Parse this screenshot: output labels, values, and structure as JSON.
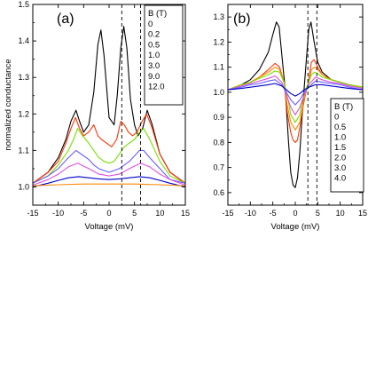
{
  "chart_data": [
    {
      "type": "line",
      "panel_label": "(a)",
      "xlabel": "Voltage (mV)",
      "ylabel": "normalized conductance",
      "xlim": [
        -15,
        15
      ],
      "ylim": [
        0.95,
        1.5
      ],
      "xticks": [
        -15,
        -10,
        -5,
        0,
        5,
        10,
        15
      ],
      "yticks": [
        1.0,
        1.1,
        1.2,
        1.3,
        1.4,
        1.5
      ],
      "ytick_labels": [
        "1.0",
        "1.1",
        "1.2",
        "1.3",
        "1.4",
        "1.5"
      ],
      "vlines": [
        2.5,
        6.2
      ],
      "legend": {
        "title": "B (T)",
        "position": "top-right"
      },
      "series": [
        {
          "name": "0",
          "color": "#000000",
          "x": [
            -15,
            -12,
            -10,
            -8.5,
            -7.5,
            -6.5,
            -5.8,
            -5,
            -4,
            -3,
            -2.2,
            -1.6,
            -1,
            0,
            1,
            1.6,
            2.3,
            2.9,
            3.5,
            4.2,
            5,
            5.7,
            6.6,
            7.5,
            8.5,
            10,
            12,
            15
          ],
          "y": [
            1.01,
            1.04,
            1.08,
            1.13,
            1.18,
            1.21,
            1.18,
            1.15,
            1.17,
            1.26,
            1.39,
            1.43,
            1.36,
            1.19,
            1.17,
            1.25,
            1.38,
            1.44,
            1.38,
            1.24,
            1.17,
            1.14,
            1.16,
            1.21,
            1.17,
            1.09,
            1.04,
            1.01
          ]
        },
        {
          "name": "0.2",
          "color": "#ff3300",
          "x": [
            -15,
            -12,
            -10,
            -8.5,
            -7.5,
            -6.6,
            -5.8,
            -5,
            -4,
            -3,
            -2.2,
            -1.5,
            -0.5,
            0.5,
            1.5,
            2.3,
            3,
            3.8,
            4.6,
            5.5,
            6.5,
            7.4,
            8.5,
            10,
            12,
            15
          ],
          "y": [
            1.01,
            1.04,
            1.07,
            1.12,
            1.16,
            1.19,
            1.16,
            1.14,
            1.15,
            1.17,
            1.14,
            1.13,
            1.12,
            1.11,
            1.13,
            1.18,
            1.17,
            1.15,
            1.14,
            1.15,
            1.18,
            1.2,
            1.16,
            1.09,
            1.04,
            1.01
          ]
        },
        {
          "name": "0.5",
          "color": "#77e000",
          "x": [
            -15,
            -12,
            -10,
            -8,
            -7,
            -6.2,
            -5.2,
            -4,
            -3,
            -2,
            -1,
            0,
            1,
            2,
            3,
            4,
            5,
            6,
            6.8,
            8,
            10,
            12,
            15
          ],
          "y": [
            1.01,
            1.03,
            1.06,
            1.1,
            1.13,
            1.16,
            1.14,
            1.12,
            1.1,
            1.08,
            1.07,
            1.065,
            1.07,
            1.09,
            1.11,
            1.12,
            1.13,
            1.15,
            1.16,
            1.13,
            1.07,
            1.03,
            1.01
          ]
        },
        {
          "name": "1.0",
          "color": "#6a5cff",
          "x": [
            -15,
            -12,
            -10,
            -8,
            -6.5,
            -5.5,
            -4,
            -3,
            -2,
            -1,
            0,
            1,
            2,
            3,
            4,
            5,
            6,
            6.8,
            8,
            10,
            12,
            15
          ],
          "y": [
            1.01,
            1.03,
            1.05,
            1.08,
            1.1,
            1.09,
            1.075,
            1.06,
            1.05,
            1.045,
            1.04,
            1.045,
            1.05,
            1.06,
            1.07,
            1.085,
            1.1,
            1.1,
            1.08,
            1.05,
            1.02,
            1.01
          ]
        },
        {
          "name": "3.0",
          "color": "#e050e0",
          "x": [
            -15,
            -12,
            -10,
            -8,
            -6.2,
            -4,
            -2,
            0,
            2,
            4,
            6.2,
            8,
            10,
            12,
            15
          ],
          "y": [
            1.005,
            1.02,
            1.035,
            1.055,
            1.065,
            1.05,
            1.035,
            1.03,
            1.035,
            1.05,
            1.065,
            1.055,
            1.035,
            1.02,
            1.005
          ]
        },
        {
          "name": "9.0",
          "color": "#0000cc",
          "x": [
            -15,
            -12,
            -10,
            -8,
            -6,
            -4,
            -2,
            0,
            2,
            4,
            6,
            8,
            10,
            12,
            15
          ],
          "y": [
            1.0,
            1.01,
            1.018,
            1.025,
            1.028,
            1.025,
            1.022,
            1.02,
            1.022,
            1.025,
            1.028,
            1.025,
            1.018,
            1.01,
            1.0
          ]
        },
        {
          "name": "12.0",
          "color": "#ff8800",
          "x": [
            -15,
            -10,
            -5,
            0,
            5,
            10,
            15
          ],
          "y": [
            1.003,
            1.006,
            1.008,
            1.008,
            1.008,
            1.006,
            1.003
          ]
        }
      ]
    },
    {
      "type": "line",
      "panel_label": "(b)",
      "xlabel": "Voltage (mV)",
      "ylabel": "",
      "xlim": [
        -15,
        15
      ],
      "ylim": [
        0.55,
        1.35
      ],
      "xticks": [
        -15,
        -10,
        -5,
        0,
        5,
        10,
        15
      ],
      "yticks": [
        0.6,
        0.7,
        0.8,
        0.9,
        1.0,
        1.1,
        1.2,
        1.3
      ],
      "ytick_labels": [
        "0.6",
        "0.7",
        "0.8",
        "0.9",
        "1.0",
        "1.1",
        "1.2",
        "1.3"
      ],
      "vlines": [
        2.8,
        4.8
      ],
      "legend": {
        "title": "B (T)",
        "position": "bottom-right"
      },
      "series": [
        {
          "name": "0",
          "color": "#000000",
          "x": [
            -15,
            -12,
            -10,
            -8,
            -6,
            -5,
            -4.2,
            -3.6,
            -3,
            -2.2,
            -1.5,
            -1,
            -0.5,
            0,
            0.5,
            1,
            1.5,
            2,
            2.5,
            3,
            3.5,
            4.2,
            5,
            6,
            8,
            10,
            12,
            15
          ],
          "y": [
            1.01,
            1.03,
            1.05,
            1.09,
            1.16,
            1.23,
            1.28,
            1.26,
            1.15,
            1.0,
            0.8,
            0.68,
            0.63,
            0.62,
            0.66,
            0.76,
            0.9,
            1.02,
            1.14,
            1.25,
            1.28,
            1.2,
            1.12,
            1.08,
            1.05,
            1.04,
            1.03,
            1.02
          ]
        },
        {
          "name": "0.5",
          "color": "#ff3300",
          "x": [
            -15,
            -12,
            -10,
            -8,
            -6,
            -4.5,
            -3.5,
            -2.5,
            -1.8,
            -1,
            -0.5,
            0,
            0.5,
            1,
            1.8,
            2.6,
            3,
            3.6,
            4.2,
            5,
            6,
            8,
            10,
            12,
            15
          ],
          "y": [
            1.01,
            1.03,
            1.04,
            1.06,
            1.09,
            1.115,
            1.1,
            1.04,
            0.92,
            0.84,
            0.81,
            0.8,
            0.81,
            0.86,
            0.95,
            1.02,
            1.05,
            1.12,
            1.13,
            1.1,
            1.07,
            1.05,
            1.04,
            1.03,
            1.02
          ]
        },
        {
          "name": "1.0",
          "color": "#ff8800",
          "x": [
            -15,
            -12,
            -10,
            -8,
            -6,
            -4.5,
            -3.5,
            -2.5,
            -1.8,
            -1,
            0,
            1,
            1.8,
            2.6,
            3,
            3.6,
            4.3,
            5,
            6,
            8,
            10,
            12,
            15
          ],
          "y": [
            1.01,
            1.03,
            1.04,
            1.06,
            1.08,
            1.1,
            1.09,
            1.04,
            0.95,
            0.88,
            0.85,
            0.88,
            0.96,
            1.02,
            1.04,
            1.09,
            1.1,
            1.09,
            1.07,
            1.05,
            1.04,
            1.03,
            1.02
          ]
        },
        {
          "name": "1.5",
          "color": "#77e000",
          "x": [
            -15,
            -12,
            -10,
            -8,
            -6,
            -4.5,
            -3.5,
            -2.5,
            -1.5,
            -1,
            0,
            1,
            1.5,
            2.5,
            3,
            3.6,
            4.3,
            5,
            6,
            8,
            10,
            12,
            15
          ],
          "y": [
            1.01,
            1.03,
            1.04,
            1.055,
            1.07,
            1.085,
            1.08,
            1.04,
            0.96,
            0.91,
            0.88,
            0.91,
            0.96,
            1.02,
            1.04,
            1.07,
            1.08,
            1.075,
            1.06,
            1.05,
            1.04,
            1.03,
            1.02
          ]
        },
        {
          "name": "2.0",
          "color": "#e050e0",
          "x": [
            -15,
            -12,
            -10,
            -8,
            -6,
            -4.5,
            -3,
            -2,
            -1,
            0,
            1,
            2,
            3,
            4.5,
            6,
            8,
            10,
            12,
            15
          ],
          "y": [
            1.01,
            1.025,
            1.035,
            1.045,
            1.055,
            1.065,
            1.04,
            0.99,
            0.94,
            0.91,
            0.94,
            0.99,
            1.03,
            1.06,
            1.05,
            1.04,
            1.035,
            1.025,
            1.015
          ]
        },
        {
          "name": "3.0",
          "color": "#6a5cff",
          "x": [
            -15,
            -12,
            -10,
            -8,
            -6,
            -4.5,
            -3,
            -2,
            -1,
            0,
            1,
            2,
            3,
            4.5,
            6,
            8,
            10,
            12,
            15
          ],
          "y": [
            1.01,
            1.02,
            1.03,
            1.035,
            1.045,
            1.05,
            1.03,
            1.0,
            0.97,
            0.95,
            0.97,
            1.0,
            1.02,
            1.045,
            1.04,
            1.035,
            1.03,
            1.02,
            1.01
          ]
        },
        {
          "name": "4.0",
          "color": "#0000cc",
          "x": [
            -15,
            -12,
            -10,
            -8,
            -6,
            -4.5,
            -3,
            -2,
            -1,
            0,
            1,
            2,
            3,
            4.5,
            6,
            8,
            10,
            12,
            15
          ],
          "y": [
            1.01,
            1.015,
            1.02,
            1.025,
            1.03,
            1.035,
            1.025,
            1.01,
            0.995,
            0.985,
            0.995,
            1.01,
            1.02,
            1.03,
            1.03,
            1.025,
            1.02,
            1.015,
            1.01
          ]
        }
      ]
    }
  ]
}
